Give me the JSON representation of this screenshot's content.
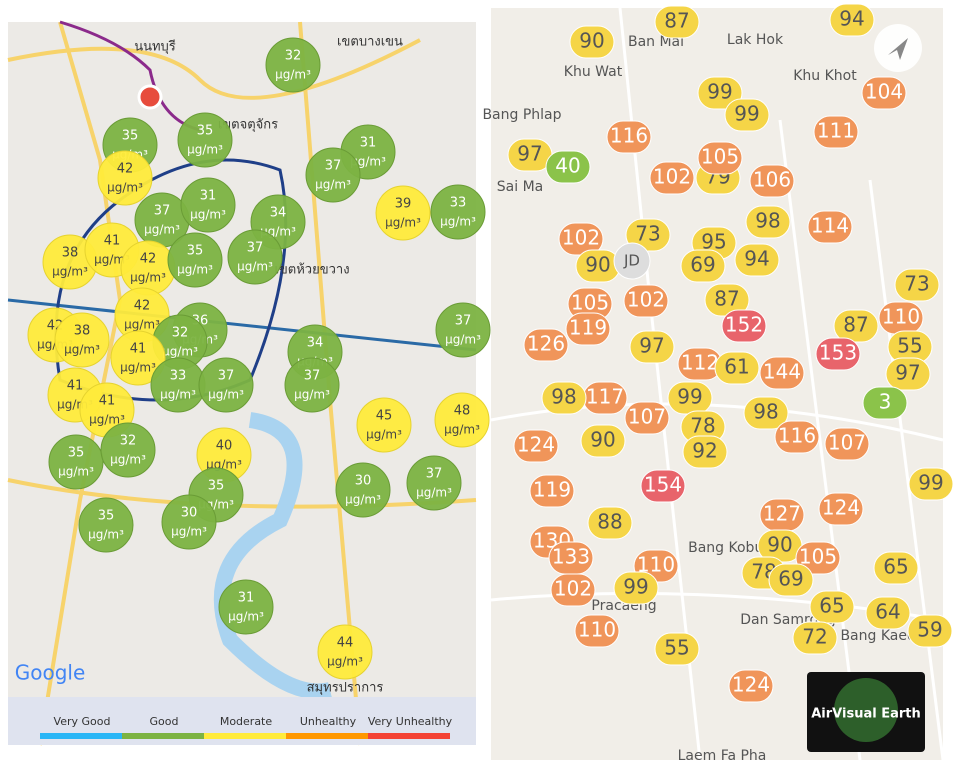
{
  "left_map": {
    "unit": "µg/m³",
    "places": [
      "นนทบุรี",
      "เขตบางเขน",
      "เขตจตุจักร",
      "เขตห้วยขวาง",
      "สมุทรปราการ"
    ],
    "brand": "Google",
    "markers": [
      32,
      35,
      35,
      31,
      42,
      37,
      37,
      31,
      34,
      39,
      33,
      38,
      41,
      42,
      35,
      37,
      42,
      36,
      32,
      42,
      38,
      41,
      34,
      37,
      33,
      37,
      37,
      41,
      41,
      45,
      48,
      35,
      32,
      40,
      30,
      37,
      35,
      35,
      30,
      31,
      44
    ],
    "legend": [
      "Very Good",
      "Good",
      "Moderate",
      "Unhealthy",
      "Very Unhealthy"
    ]
  },
  "right_map": {
    "places": [
      "Ban Mai",
      "Lak Hok",
      "Khu Wat",
      "Khu Khot",
      "Bang Phlap",
      "Sai Ma",
      "Bang Kobua",
      "Pracaeng",
      "Dan Samrong",
      "Bang Kaeo",
      "Laem Fa Pha"
    ],
    "station": "JD",
    "markers": [
      87,
      90,
      94,
      99,
      99,
      104,
      116,
      111,
      97,
      40,
      102,
      79,
      106,
      105,
      98,
      114,
      102,
      73,
      95,
      90,
      69,
      94,
      87,
      105,
      102,
      152,
      73,
      110,
      119,
      87,
      126,
      97,
      153,
      55,
      112,
      61,
      144,
      97,
      117,
      99,
      98,
      107,
      98,
      3,
      78,
      116,
      107,
      124,
      90,
      92,
      154,
      119,
      88,
      127,
      124,
      99,
      130,
      90,
      105,
      133,
      110,
      65,
      78,
      69,
      102,
      99,
      65,
      64,
      110,
      72,
      59,
      55,
      124
    ],
    "badge": "AirVisual Earth"
  }
}
